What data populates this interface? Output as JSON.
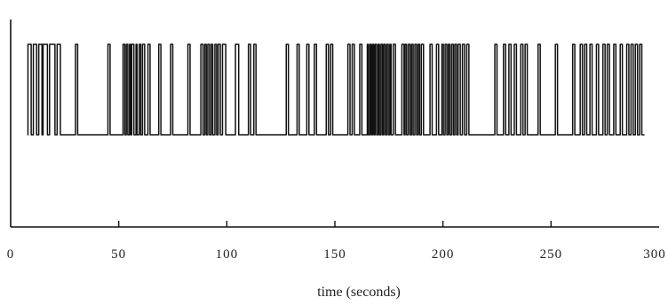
{
  "chart_data": {
    "type": "line",
    "title": "",
    "xlabel": "time (seconds)",
    "ylabel": "",
    "xlim": [
      0,
      300
    ],
    "ylim": [
      0,
      1
    ],
    "xticks": [
      50,
      100,
      150,
      200,
      250
    ],
    "tick_labels": [
      "0",
      "50",
      "100",
      "150",
      "200",
      "250",
      "300"
    ],
    "grid": false,
    "line_color": "#111111",
    "y_levels": [
      0.42,
      1.0
    ],
    "series": [
      {
        "step_times": [
          8.0,
          9.5,
          10.5,
          12.0,
          13.0,
          14.5,
          15.0,
          17.0,
          18.0,
          20.5,
          21.5,
          23.0,
          30.0,
          31.0,
          45.0,
          46.0,
          52.0,
          52.8,
          53.5,
          54.2,
          55.0,
          55.6,
          56.0,
          57.0,
          58.0,
          58.5,
          59.5,
          60.2,
          61.0,
          62.0,
          63.5,
          64.5,
          68.5,
          69.5,
          74.0,
          75.0,
          82.0,
          83.0,
          88.0,
          89.0,
          89.8,
          90.5,
          91.2,
          92.0,
          92.8,
          93.5,
          94.5,
          95.3,
          96.0,
          97.0,
          98.0,
          99.5,
          104.0,
          105.5,
          110.0,
          111.0,
          112.5,
          113.5,
          127.5,
          128.5,
          132.5,
          133.5,
          137.0,
          138.0,
          140.5,
          141.5,
          146.0,
          147.0,
          148.0,
          149.0,
          156.0,
          157.0,
          158.0,
          159.0,
          161.5,
          162.5,
          165.0,
          165.5,
          166.2,
          166.8,
          167.4,
          168.0,
          168.6,
          169.3,
          170.0,
          170.6,
          171.3,
          172.0,
          172.6,
          173.3,
          174.0,
          174.7,
          175.4,
          176.0,
          177.0,
          178.0,
          181.0,
          182.0,
          182.5,
          183.2,
          184.0,
          184.8,
          185.5,
          186.2,
          187.0,
          187.8,
          188.5,
          189.2,
          190.0,
          191.0,
          194.0,
          195.0,
          197.0,
          198.0,
          199.5,
          200.2,
          201.0,
          201.8,
          202.5,
          203.2,
          204.0,
          204.8,
          205.5,
          206.3,
          207.0,
          208.0,
          209.0,
          210.0,
          211.0,
          212.0,
          224.0,
          225.0,
          228.0,
          229.0,
          230.5,
          231.5,
          233.0,
          234.0,
          236.0,
          237.0,
          238.0,
          239.0,
          244.0,
          245.0,
          252.0,
          253.0,
          260.0,
          261.0,
          263.5,
          264.5,
          265.5,
          266.5,
          268.0,
          269.0,
          271.0,
          272.0,
          274.0,
          275.0,
          276.0,
          277.0,
          279.0,
          280.0,
          282.0,
          283.0,
          285.0,
          286.0,
          287.0,
          288.0,
          289.0,
          290.0,
          291.0,
          292.0
        ],
        "start_level": 0.42
      }
    ]
  }
}
